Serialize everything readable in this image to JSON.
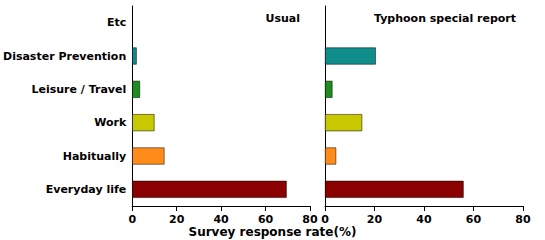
{
  "chart_data": [
    {
      "type": "bar",
      "title": "Usual",
      "orientation": "horizontal",
      "categories": [
        "Everyday life",
        "Habitually",
        "Work",
        "Leisure / Travel",
        "Disaster Prevention",
        "Etc"
      ],
      "values": [
        69.5,
        14.5,
        10,
        3.5,
        2,
        0
      ],
      "colors": [
        "#8b0000",
        "#ff8c1a",
        "#c8c800",
        "#1e8c1e",
        "#0f8c8c",
        "#888888"
      ],
      "xlim": [
        0,
        80
      ],
      "xticks": [
        0,
        20,
        40,
        60,
        80
      ],
      "xlabel": "Survey response rate(%)",
      "grid": false,
      "tick_labels": true
    },
    {
      "type": "bar",
      "title": "Typhoon special report",
      "orientation": "horizontal",
      "categories": [
        "Everyday life",
        "Habitually",
        "Work",
        "Leisure / Travel",
        "Disaster Prevention",
        "Etc"
      ],
      "values": [
        56,
        4.5,
        15,
        3,
        20.5,
        0
      ],
      "colors": [
        "#8b0000",
        "#ff8c1a",
        "#c8c800",
        "#1e8c1e",
        "#0f8c8c",
        "#888888"
      ],
      "xlim": [
        0,
        80
      ],
      "xticks": [
        0,
        20,
        40,
        60,
        80
      ],
      "grid": false,
      "tick_labels": "x"
    }
  ]
}
